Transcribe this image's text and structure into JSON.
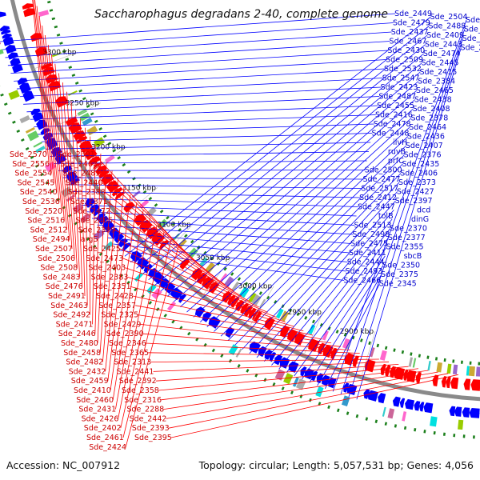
{
  "title": "Saccharophagus degradans 2-40, complete genome",
  "footer": {
    "accession": "Accession: NC_007912",
    "summary": "Topology: circular; Length: 5,057,531 bp; Genes: 4,056"
  },
  "colors": {
    "forward": "#0000ff",
    "reverse": "#ff0000",
    "backbone": "#8a8a8a",
    "tick_marks": "#1a7f1a"
  },
  "ticks": [
    "3300 kbp",
    "3250 kbp",
    "3200 kbp",
    "3150 kbp",
    "3100 kbp",
    "3050 kbp",
    "3000 kbp",
    "2950 kbp",
    "2900 kbp"
  ],
  "labels_forward": [
    "Sde_2449",
    "Sde_2479",
    "Sde_2437",
    "Sde_2467",
    "Sde_2430",
    "Sde_2509",
    "Sde_2532",
    "Sde_2547",
    "Sde_2423",
    "Sde_2487",
    "Sde_2455",
    "Sde_2416",
    "Sde_2478",
    "Sde_2448",
    "ilvH",
    "ruvB",
    "prfC",
    "Sde_2500",
    "Sde_2477",
    "Sde_2517",
    "Sde_2412",
    "Sde_2447",
    "tolB",
    "Sde_2513",
    "Sde_2498",
    "Sde_2475",
    "Sde_2411",
    "Sde_2444",
    "Sde_2493",
    "Sde_2466",
    "Sde_2504",
    "Sde_2488",
    "Sde_2409",
    "Sde_2443",
    "Sde_2474",
    "Sde_2445",
    "Sde_2415",
    "Sde_2384",
    "Sde_2465",
    "Sde_2438",
    "Sde_2408",
    "Sde_2378",
    "Sde_2464",
    "Sde_2436",
    "Sde_2407",
    "Sde_2376",
    "Sde_2435",
    "Sde_2406",
    "Sde_2373",
    "Sde_2427",
    "Sde_2397",
    "dcd",
    "dinG",
    "Sde_2370",
    "Sde_2377",
    "Sde_2355",
    "sbcB",
    "Sde_2350",
    "Sde_2375",
    "Sde_2345",
    "Sde_2372",
    "Sde_2340",
    "Sde_2334",
    "Sde_2326"
  ],
  "labels_reverse": [
    "Sde_2570",
    "Sde_2556",
    "Sde_2554",
    "Sde_2545",
    "Sde_2540",
    "Sde_2536",
    "Sde_2520",
    "Sde_2516",
    "Sde_2512",
    "Sde_2494",
    "Sde_2507",
    "Sde_2506",
    "Sde_2508",
    "Sde_2483",
    "Sde_2476",
    "Sde_2491",
    "Sde_2463",
    "Sde_2492",
    "Sde_2471",
    "Sde_2446",
    "Sde_2480",
    "Sde_2458",
    "Sde_2482",
    "Sde_2432",
    "Sde_2459",
    "Sde_2410",
    "Sde_2460",
    "Sde_2431",
    "Sde_2426",
    "Sde_2402",
    "Sde_2461",
    "Sde_2424",
    "Sde_2391",
    "Sde_2462",
    "Sde_2481",
    "Sde_2440",
    "Sde_2388",
    "Sde_2371",
    "Sde_2472",
    "Sde_2405",
    "Sde_2389",
    "argS",
    "Sde_2425",
    "Sde_2473",
    "Sde_2403",
    "Sde_2383",
    "Sde_2351",
    "Sde_2428",
    "Sde_2357",
    "Sde_2325",
    "Sde_2429",
    "Sde_2390",
    "Sde_2346",
    "Sde_2365",
    "Sde_2313",
    "Sde_2441",
    "Sde_2392",
    "Sde_2358",
    "Sde_2316",
    "Sde_2288",
    "Sde_2442",
    "Sde_2393",
    "Sde_2395"
  ]
}
